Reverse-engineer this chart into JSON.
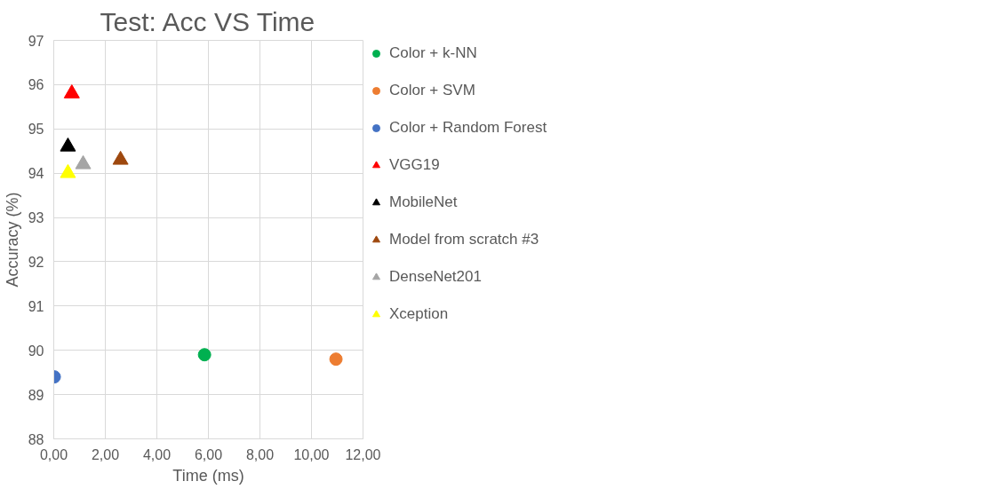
{
  "chart_data": {
    "type": "scatter",
    "title": "Test: Acc VS Time",
    "xlabel": "Time (ms)",
    "ylabel": "Accuracy (%)",
    "series": [
      {
        "name": "Color + k-NN",
        "color": "#00b050",
        "marker": "circle",
        "x": [
          5.85
        ],
        "values": [
          89.9
        ]
      },
      {
        "name": "Color + SVM",
        "color": "#ed7d31",
        "marker": "circle",
        "x": [
          10.95
        ],
        "values": [
          89.8
        ]
      },
      {
        "name": "Color + Random Forest",
        "color": "#4472c4",
        "marker": "circle",
        "x": [
          0.02
        ],
        "values": [
          89.4
        ]
      },
      {
        "name": "VGG19",
        "color": "#ff0000",
        "marker": "triangle",
        "x": [
          0.7
        ],
        "values": [
          95.8
        ]
      },
      {
        "name": "MobileNet",
        "color": "#000000",
        "marker": "triangle",
        "x": [
          0.55
        ],
        "values": [
          94.6
        ]
      },
      {
        "name": "Model from scratch #3",
        "color": "#9e480e",
        "marker": "triangle",
        "x": [
          2.59
        ],
        "values": [
          94.3
        ]
      },
      {
        "name": "DenseNet201",
        "color": "#a5a5a5",
        "marker": "triangle",
        "x": [
          1.14
        ],
        "values": [
          94.2
        ]
      },
      {
        "name": "Xception",
        "color": "#ffff00",
        "marker": "triangle",
        "x": [
          0.55
        ],
        "values": [
          94.0
        ]
      }
    ],
    "xlim": [
      0,
      12
    ],
    "ylim": [
      88,
      97
    ],
    "xticks": [
      {
        "value": 0,
        "label": "0,00"
      },
      {
        "value": 2,
        "label": "2,00"
      },
      {
        "value": 4,
        "label": "4,00"
      },
      {
        "value": 6,
        "label": "6,00"
      },
      {
        "value": 8,
        "label": "8,00"
      },
      {
        "value": 10,
        "label": "10,00"
      },
      {
        "value": 12,
        "label": "12,00"
      }
    ],
    "yticks": [
      88,
      89,
      90,
      91,
      92,
      93,
      94,
      95,
      96,
      97
    ],
    "grid": true,
    "legend": "right"
  }
}
